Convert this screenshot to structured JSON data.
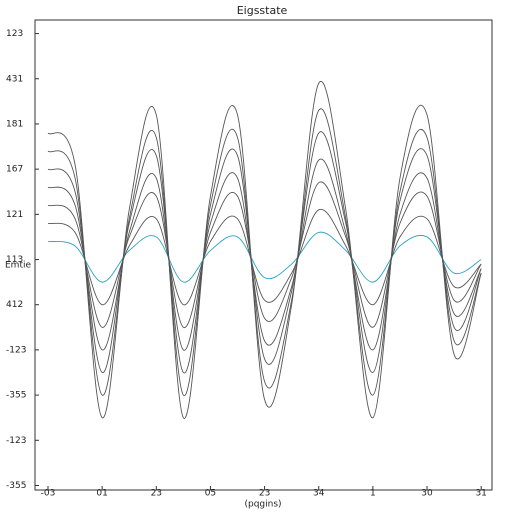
{
  "chart_data": {
    "type": "line",
    "title": "Eigsstate",
    "x_label": "(pqgins)",
    "y_label": "Emtie",
    "x": [
      0,
      0.5,
      1,
      1.5,
      2,
      2.5,
      3,
      3.5,
      4,
      4.5,
      5,
      5.5,
      6,
      6.5,
      7,
      7.5,
      8
    ],
    "series": [
      {
        "color": "#29a3c8",
        "values": [
          5.4,
          5.3,
          4.5,
          5.2,
          5.5,
          4.5,
          5.2,
          5.5,
          4.6,
          4.9,
          5.6,
          5.2,
          4.5,
          5.3,
          5.5,
          4.7,
          5.0
        ]
      },
      {
        "color": "#555555",
        "values": [
          5.8,
          5.6,
          4,
          5.3,
          5.9,
          4,
          5.4,
          5.9,
          4.1,
          4.7,
          6.1,
          5.3,
          4,
          5.5,
          5.9,
          4.4,
          4.9
        ]
      },
      {
        "color": "#555555",
        "values": [
          6.2,
          5.9,
          3.5,
          5.5,
          6.4,
          3.5,
          5.6,
          6.4,
          3.7,
          4.6,
          6.7,
          5.5,
          3.5,
          5.8,
          6.4,
          4.1,
          4.9
        ]
      },
      {
        "color": "#555555",
        "values": [
          6.6,
          6.2,
          3,
          5.6,
          6.8,
          3,
          5.8,
          6.8,
          3.2,
          4.4,
          7.2,
          5.6,
          3,
          6,
          6.8,
          3.8,
          4.8
        ]
      },
      {
        "color": "#555555",
        "values": [
          7,
          6.5,
          2.5,
          5.8,
          7.3,
          2.5,
          6,
          7.3,
          2.8,
          4.3,
          7.8,
          5.8,
          2.5,
          6.3,
          7.3,
          3.5,
          4.8
        ]
      },
      {
        "color": "#555555",
        "values": [
          7.4,
          6.8,
          2,
          5.9,
          7.7,
          2,
          6.2,
          7.7,
          2.3,
          4.1,
          8.3,
          5.9,
          2,
          6.5,
          7.7,
          3.2,
          4.7
        ]
      },
      {
        "color": "#555555",
        "values": [
          7.8,
          7.1,
          1.5,
          6.1,
          8.2,
          1.5,
          6.4,
          8.2,
          1.9,
          4,
          8.9,
          6.1,
          1.5,
          6.8,
          8.2,
          2.9,
          4.7
        ]
      }
    ],
    "xlim": [
      -0.24,
      8.2
    ],
    "xticks": [
      {
        "value": 0,
        "label": "-03"
      },
      {
        "value": 1,
        "label": "01"
      },
      {
        "value": 2,
        "label": "23"
      },
      {
        "value": 3,
        "label": "05"
      },
      {
        "value": 4,
        "label": "23"
      },
      {
        "value": 5,
        "label": "34"
      },
      {
        "value": 6,
        "label": "1"
      },
      {
        "value": 7,
        "label": "30"
      },
      {
        "value": 8,
        "label": "31"
      }
    ],
    "ylim": [
      -0.1,
      10.3
    ],
    "yticks": [
      {
        "value": 0,
        "label": "-355"
      },
      {
        "value": 1,
        "label": "-123"
      },
      {
        "value": 2,
        "label": "-355"
      },
      {
        "value": 3,
        "label": "-123"
      },
      {
        "value": 4,
        "label": "412"
      },
      {
        "value": 5,
        "label": "113"
      },
      {
        "value": 6,
        "label": "121"
      },
      {
        "value": 7,
        "label": "167"
      },
      {
        "value": 8,
        "label": "181"
      },
      {
        "value": 9,
        "label": "431"
      },
      {
        "value": 10,
        "label": "123"
      }
    ]
  }
}
